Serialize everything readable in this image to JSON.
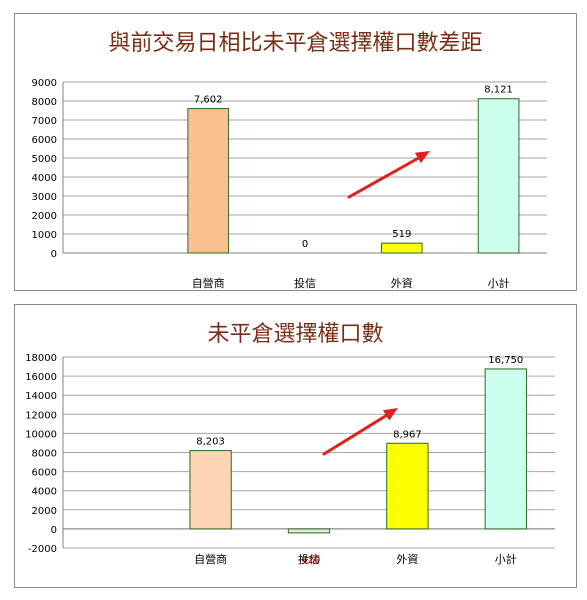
{
  "chart_data": [
    {
      "type": "bar",
      "title": "與前交易日相比未平倉選擇權口數差距",
      "categories": [
        "",
        "自營商",
        "投信",
        "外資",
        "小計"
      ],
      "values": [
        null,
        7602,
        0,
        519,
        8121
      ],
      "data_labels": [
        "",
        "7,602",
        "0",
        "519",
        "8,121"
      ],
      "bar_colors": [
        "",
        "#fac090",
        "#e6e6e6",
        "#ffff00",
        "#ccffee"
      ],
      "ylim": [
        0,
        9000
      ],
      "yticks": [
        0,
        1000,
        2000,
        3000,
        4000,
        5000,
        6000,
        7000,
        8000,
        9000
      ],
      "grid": true,
      "legend": "none",
      "annotation": "red-arrow-up-right"
    },
    {
      "type": "bar",
      "title": "未平倉選擇權口數",
      "categories": [
        "",
        "自營商",
        "投信",
        "外資",
        "小計"
      ],
      "values": [
        null,
        8203,
        -420,
        8967,
        16750
      ],
      "data_labels": [
        "",
        "8,203",
        "-420",
        "8,967",
        "16,750"
      ],
      "bar_colors": [
        "",
        "#fcd5b4",
        "#e6e6e6",
        "#ffff00",
        "#ccffee"
      ],
      "ylim": [
        -2000,
        18000
      ],
      "yticks": [
        -2000,
        0,
        2000,
        4000,
        6000,
        8000,
        10000,
        12000,
        14000,
        16000,
        18000
      ],
      "grid": true,
      "legend": "none",
      "annotation": "red-arrow-up-right"
    }
  ],
  "colors": {
    "title": "#7a2d14",
    "negative_label": "#cc0000",
    "arrow": "#e0201b",
    "grid": "#a6a6a6",
    "bar_stroke": "#2e6b1f"
  }
}
